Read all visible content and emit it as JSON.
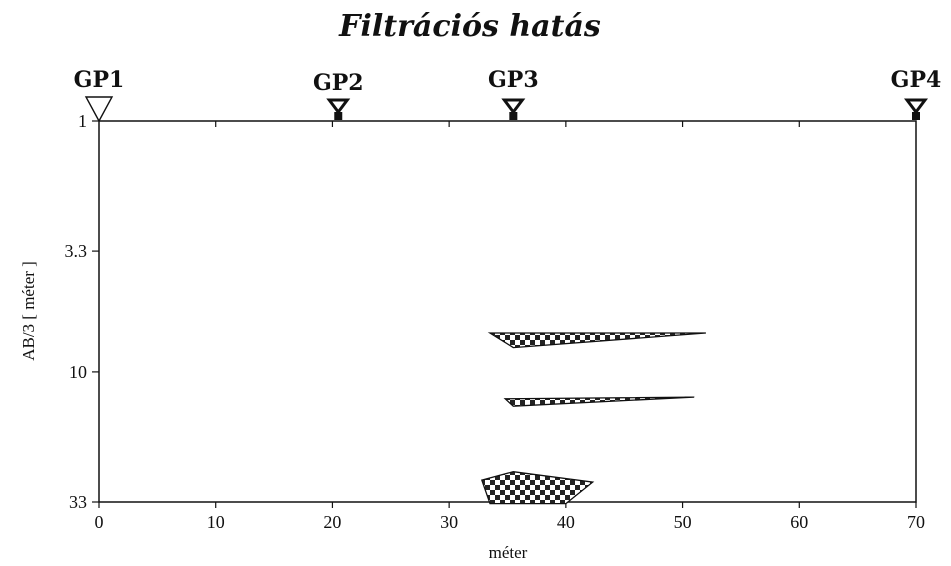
{
  "title": "Filtrációs hatás",
  "x_axis": {
    "label": "méter",
    "range": [
      0,
      70
    ],
    "ticks": [
      0,
      10,
      20,
      30,
      40,
      50,
      60,
      70
    ],
    "tick_labels": [
      "0",
      "10",
      "20",
      "30",
      "40",
      "50",
      "60",
      "70"
    ]
  },
  "y_axis": {
    "label": "AB/3 [ méter ]",
    "scale": "log",
    "range": [
      1,
      33
    ],
    "ticks": [
      1,
      3.3,
      10,
      33
    ],
    "tick_labels": [
      "1",
      "3.3",
      "10",
      "33"
    ]
  },
  "stations": [
    {
      "name": "GP1",
      "x": 0,
      "marker": "open-triangle"
    },
    {
      "name": "GP2",
      "x": 20.5,
      "marker": "probe-triangle"
    },
    {
      "name": "GP3",
      "x": 35.5,
      "marker": "probe-triangle"
    },
    {
      "name": "GP4",
      "x": 70,
      "marker": "probe-triangle"
    }
  ],
  "anomalies": [
    {
      "name": "upper-wedge",
      "pattern": "checkerboard",
      "points": [
        [
          33.5,
          7.0
        ],
        [
          52.0,
          7.0
        ],
        [
          35.5,
          8.0
        ]
      ]
    },
    {
      "name": "middle-wedge",
      "pattern": "checkerboard",
      "points": [
        [
          34.8,
          12.8
        ],
        [
          51.0,
          12.6
        ],
        [
          35.5,
          13.7
        ]
      ]
    },
    {
      "name": "lower-block",
      "pattern": "checkerboard",
      "points": [
        [
          32.8,
          27.0
        ],
        [
          35.5,
          25.0
        ],
        [
          42.3,
          27.5
        ],
        [
          40.0,
          33.5
        ],
        [
          33.5,
          33.5
        ]
      ]
    }
  ]
}
